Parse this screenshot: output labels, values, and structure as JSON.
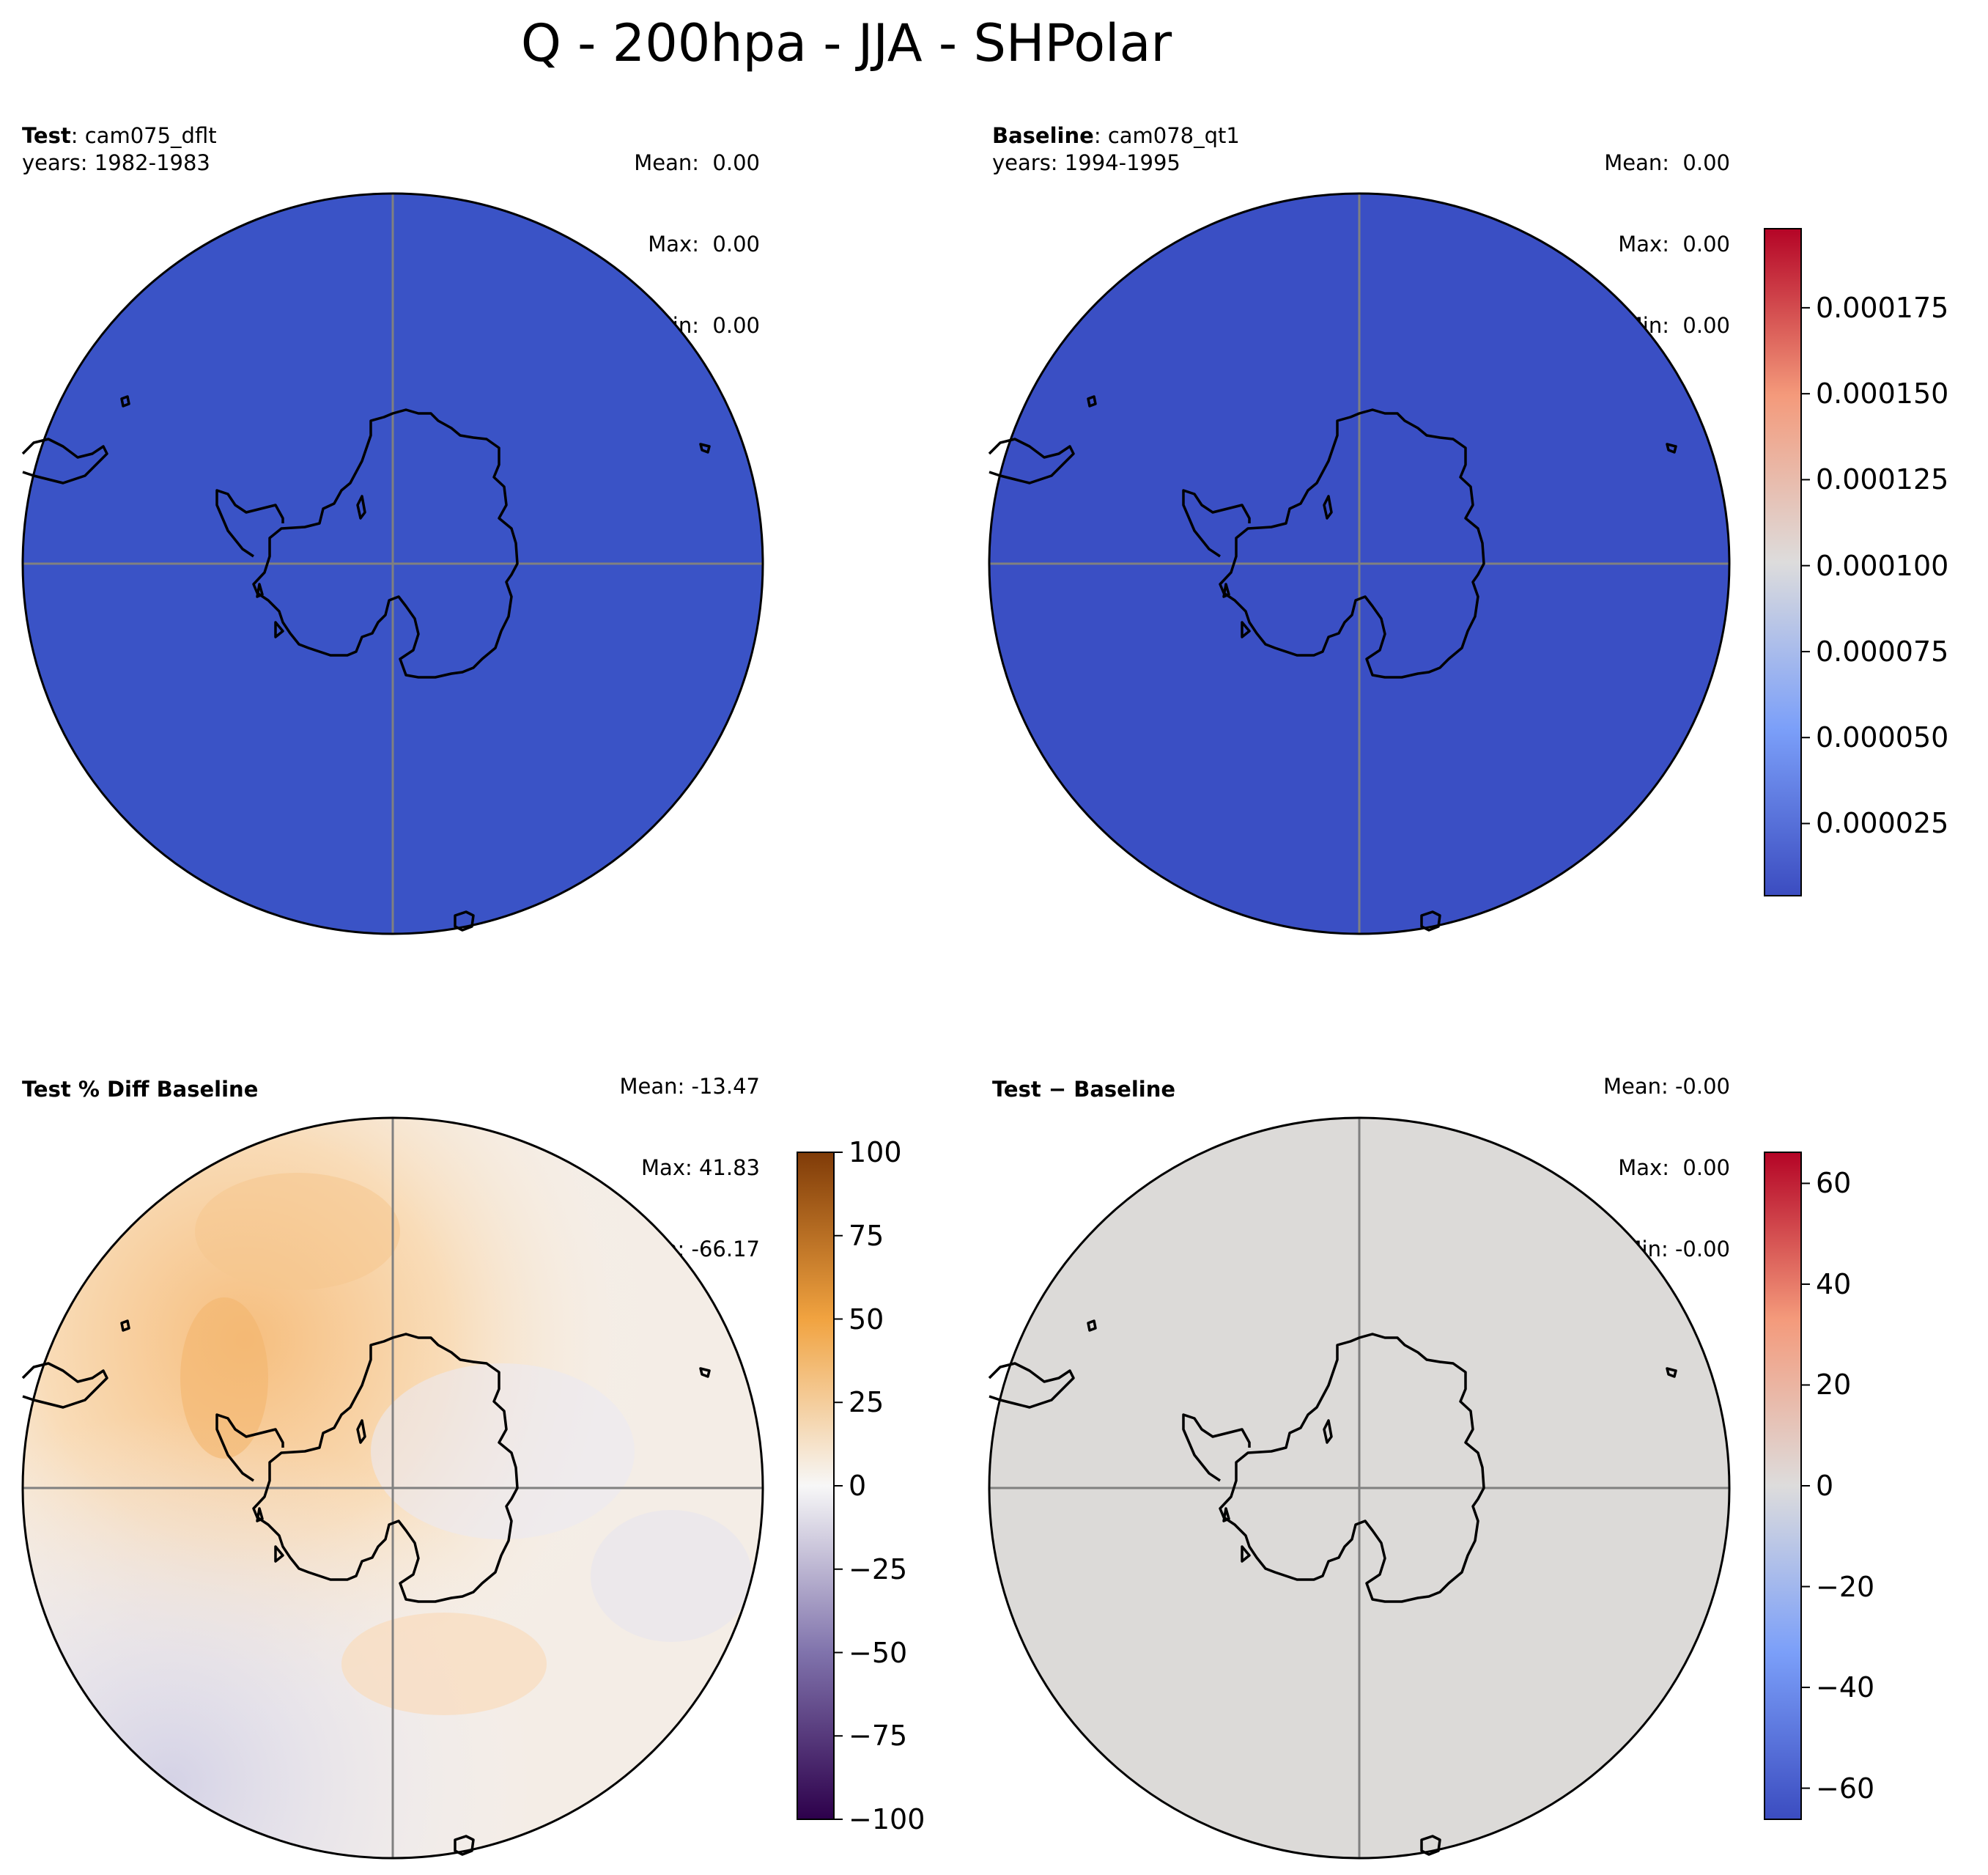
{
  "title": "Q - 200hpa - JJA - SHPolar",
  "panels": [
    {
      "label_bold": "Test",
      "label_sep": ": ",
      "label_name": "cam075_dflt",
      "years": "years: 1982-1983",
      "stats": {
        "mean": "Mean:  0.00",
        "max": "Max:  0.00",
        "min": "Min:  0.00"
      },
      "fill": "#3a53c6"
    },
    {
      "label_bold": "Baseline",
      "label_sep": ": ",
      "label_name": "cam078_qt1",
      "years": "years: 1994-1995",
      "stats": {
        "mean": "Mean:  0.00",
        "max": "Max:  0.00",
        "min": "Min:  0.00"
      },
      "fill": "#3a4fc4"
    },
    {
      "label_bold": "Test % Diff Baseline",
      "stats": {
        "mean": "Mean: -13.47",
        "max": "Max: 41.83",
        "min": "Min: -66.17"
      },
      "fill": "#f4ede6"
    },
    {
      "label_bold": "Test − Baseline",
      "stats": {
        "mean": "Mean: -0.00",
        "max": "Max:  0.00",
        "min": "Min: -0.00"
      },
      "fill": "#dcdad8"
    }
  ],
  "colorbars": [
    {
      "colormap": "coolwarm",
      "ticks": [
        "0.000025",
        "0.000050",
        "0.000075",
        "0.000100",
        "0.000125",
        "0.000150",
        "0.000175"
      ],
      "tick_values": [
        2.5e-05,
        5e-05,
        7.5e-05,
        0.0001,
        0.000125,
        0.00015,
        0.000175
      ],
      "range": [
        4e-06,
        0.000198
      ]
    },
    {
      "colormap": "PuOr_r",
      "ticks": [
        "100",
        "75",
        "50",
        "25",
        "0",
        "−25",
        "−50",
        "−75",
        "−100"
      ],
      "tick_values": [
        100,
        75,
        50,
        25,
        0,
        -25,
        -50,
        -75,
        -100
      ],
      "range": [
        -100,
        100
      ]
    },
    {
      "colormap": "coolwarm",
      "ticks": [
        "60",
        "40",
        "20",
        "0",
        "−20",
        "−40",
        "−60"
      ],
      "tick_values": [
        60,
        40,
        20,
        0,
        -20,
        -40,
        -60
      ],
      "range": [
        -66.17,
        66.17
      ]
    }
  ]
}
